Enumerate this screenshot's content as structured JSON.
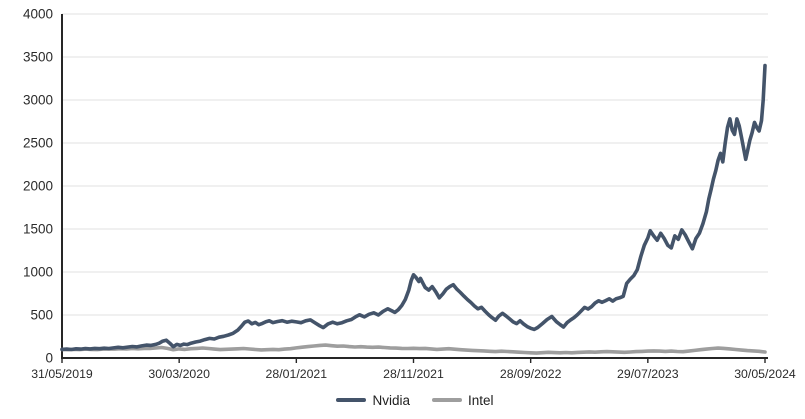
{
  "chart_data": {
    "type": "line",
    "title": "",
    "xlabel": "",
    "ylabel": "",
    "grid": true,
    "legend_position": "bottom",
    "x_axis": {
      "labels": [
        "31/05/2019",
        "30/03/2020",
        "28/01/2021",
        "28/11/2021",
        "28/09/2022",
        "29/07/2023",
        "30/05/2024"
      ],
      "unit": "months-from-start",
      "range": [
        0,
        60
      ]
    },
    "y_axis": {
      "min": 0,
      "max": 4000,
      "step": 500,
      "ticks": [
        "0",
        "500",
        "1000",
        "1500",
        "2000",
        "2500",
        "3000",
        "3500",
        "4000"
      ]
    },
    "series": [
      {
        "name": "Intel",
        "color": "#9E9E9E",
        "points": [
          [
            0,
            100
          ],
          [
            0.5,
            97
          ],
          [
            1,
            101
          ],
          [
            1.5,
            98
          ],
          [
            2,
            103
          ],
          [
            2.5,
            100
          ],
          [
            3,
            98
          ],
          [
            3.5,
            103
          ],
          [
            4,
            106
          ],
          [
            4.5,
            103
          ],
          [
            5,
            108
          ],
          [
            5.5,
            105
          ],
          [
            6,
            110
          ],
          [
            6.5,
            107
          ],
          [
            7,
            112
          ],
          [
            7.5,
            110
          ],
          [
            8,
            116
          ],
          [
            8.5,
            122
          ],
          [
            9,
            112
          ],
          [
            9.5,
            96
          ],
          [
            10,
            106
          ],
          [
            10.5,
            100
          ],
          [
            11,
            108
          ],
          [
            11.5,
            112
          ],
          [
            12,
            116
          ],
          [
            12.5,
            110
          ],
          [
            13,
            104
          ],
          [
            13.5,
            98
          ],
          [
            14,
            101
          ],
          [
            14.5,
            104
          ],
          [
            15,
            107
          ],
          [
            15.5,
            110
          ],
          [
            16,
            105
          ],
          [
            16.5,
            99
          ],
          [
            17,
            94
          ],
          [
            17.5,
            97
          ],
          [
            18,
            100
          ],
          [
            18.5,
            97
          ],
          [
            19,
            103
          ],
          [
            19.5,
            108
          ],
          [
            20,
            118
          ],
          [
            20.5,
            126
          ],
          [
            21,
            133
          ],
          [
            21.5,
            140
          ],
          [
            22,
            146
          ],
          [
            22.5,
            150
          ],
          [
            23,
            143
          ],
          [
            23.5,
            137
          ],
          [
            24,
            140
          ],
          [
            24.5,
            133
          ],
          [
            25,
            128
          ],
          [
            25.5,
            131
          ],
          [
            26,
            127
          ],
          [
            26.5,
            124
          ],
          [
            27,
            127
          ],
          [
            27.5,
            122
          ],
          [
            28,
            118
          ],
          [
            28.5,
            115
          ],
          [
            29,
            112
          ],
          [
            29.5,
            110
          ],
          [
            30,
            113
          ],
          [
            30.5,
            109
          ],
          [
            31,
            112
          ],
          [
            31.5,
            106
          ],
          [
            32,
            100
          ],
          [
            32.5,
            104
          ],
          [
            33,
            108
          ],
          [
            33.5,
            102
          ],
          [
            34,
            97
          ],
          [
            34.5,
            92
          ],
          [
            35,
            88
          ],
          [
            35.5,
            85
          ],
          [
            36,
            82
          ],
          [
            36.5,
            78
          ],
          [
            37,
            75
          ],
          [
            37.5,
            79
          ],
          [
            38,
            76
          ],
          [
            38.5,
            72
          ],
          [
            39,
            68
          ],
          [
            39.5,
            64
          ],
          [
            40,
            60
          ],
          [
            40.5,
            57
          ],
          [
            41,
            62
          ],
          [
            41.5,
            66
          ],
          [
            42,
            63
          ],
          [
            42.5,
            60
          ],
          [
            43,
            64
          ],
          [
            43.5,
            61
          ],
          [
            44,
            65
          ],
          [
            44.5,
            68
          ],
          [
            45,
            71
          ],
          [
            45.5,
            68
          ],
          [
            46,
            72
          ],
          [
            46.5,
            75
          ],
          [
            47,
            72
          ],
          [
            47.5,
            69
          ],
          [
            48,
            66
          ],
          [
            48.5,
            70
          ],
          [
            49,
            74
          ],
          [
            49.5,
            77
          ],
          [
            50,
            80
          ],
          [
            50.5,
            83
          ],
          [
            51,
            80
          ],
          [
            51.5,
            77
          ],
          [
            52,
            80
          ],
          [
            52.5,
            76
          ],
          [
            53,
            73
          ],
          [
            53.5,
            80
          ],
          [
            54,
            88
          ],
          [
            54.5,
            96
          ],
          [
            55,
            104
          ],
          [
            55.5,
            110
          ],
          [
            56,
            115
          ],
          [
            56.5,
            112
          ],
          [
            57,
            106
          ],
          [
            57.5,
            99
          ],
          [
            58,
            92
          ],
          [
            58.5,
            86
          ],
          [
            59,
            82
          ],
          [
            59.5,
            78
          ],
          [
            60,
            70
          ]
        ]
      },
      {
        "name": "Nvidia",
        "color": "#44546A",
        "points": [
          [
            0,
            100
          ],
          [
            0.4,
            104
          ],
          [
            0.8,
            99
          ],
          [
            1.2,
            107
          ],
          [
            1.6,
            103
          ],
          [
            2,
            111
          ],
          [
            2.4,
            106
          ],
          [
            2.8,
            112
          ],
          [
            3.2,
            108
          ],
          [
            3.6,
            114
          ],
          [
            4,
            110
          ],
          [
            4.4,
            118
          ],
          [
            4.8,
            124
          ],
          [
            5.2,
            119
          ],
          [
            5.6,
            127
          ],
          [
            6,
            134
          ],
          [
            6.4,
            129
          ],
          [
            6.8,
            141
          ],
          [
            7.2,
            150
          ],
          [
            7.6,
            146
          ],
          [
            8,
            158
          ],
          [
            8.3,
            172
          ],
          [
            8.6,
            196
          ],
          [
            8.9,
            207
          ],
          [
            9.2,
            172
          ],
          [
            9.5,
            131
          ],
          [
            9.8,
            158
          ],
          [
            10.1,
            147
          ],
          [
            10.4,
            162
          ],
          [
            10.7,
            156
          ],
          [
            11,
            172
          ],
          [
            11.4,
            186
          ],
          [
            11.8,
            196
          ],
          [
            12.2,
            214
          ],
          [
            12.6,
            228
          ],
          [
            13,
            221
          ],
          [
            13.4,
            242
          ],
          [
            13.8,
            252
          ],
          [
            14.2,
            268
          ],
          [
            14.6,
            287
          ],
          [
            15,
            324
          ],
          [
            15.3,
            368
          ],
          [
            15.6,
            416
          ],
          [
            15.9,
            430
          ],
          [
            16.2,
            398
          ],
          [
            16.5,
            414
          ],
          [
            16.8,
            387
          ],
          [
            17.1,
            402
          ],
          [
            17.4,
            422
          ],
          [
            17.7,
            432
          ],
          [
            18,
            412
          ],
          [
            18.4,
            424
          ],
          [
            18.8,
            434
          ],
          [
            19.2,
            416
          ],
          [
            19.6,
            428
          ],
          [
            20,
            420
          ],
          [
            20.4,
            410
          ],
          [
            20.8,
            432
          ],
          [
            21.2,
            443
          ],
          [
            21.6,
            408
          ],
          [
            22,
            374
          ],
          [
            22.3,
            354
          ],
          [
            22.7,
            396
          ],
          [
            23.1,
            416
          ],
          [
            23.5,
            398
          ],
          [
            23.9,
            410
          ],
          [
            24.3,
            432
          ],
          [
            24.7,
            448
          ],
          [
            25.1,
            482
          ],
          [
            25.4,
            502
          ],
          [
            25.8,
            478
          ],
          [
            26.2,
            508
          ],
          [
            26.6,
            526
          ],
          [
            27,
            500
          ],
          [
            27.4,
            542
          ],
          [
            27.8,
            572
          ],
          [
            28.1,
            552
          ],
          [
            28.4,
            530
          ],
          [
            28.7,
            562
          ],
          [
            29,
            610
          ],
          [
            29.3,
            680
          ],
          [
            29.6,
            790
          ],
          [
            29.8,
            900
          ],
          [
            30,
            968
          ],
          [
            30.2,
            940
          ],
          [
            30.45,
            890
          ],
          [
            30.6,
            925
          ],
          [
            30.8,
            870
          ],
          [
            31,
            820
          ],
          [
            31.3,
            790
          ],
          [
            31.6,
            830
          ],
          [
            31.9,
            770
          ],
          [
            32.2,
            700
          ],
          [
            32.5,
            745
          ],
          [
            32.8,
            800
          ],
          [
            33.1,
            830
          ],
          [
            33.4,
            852
          ],
          [
            33.7,
            800
          ],
          [
            34,
            762
          ],
          [
            34.3,
            720
          ],
          [
            34.6,
            680
          ],
          [
            34.9,
            645
          ],
          [
            35.2,
            605
          ],
          [
            35.5,
            572
          ],
          [
            35.8,
            590
          ],
          [
            36.1,
            545
          ],
          [
            36.4,
            505
          ],
          [
            36.7,
            470
          ],
          [
            37,
            440
          ],
          [
            37.3,
            490
          ],
          [
            37.6,
            520
          ],
          [
            37.9,
            488
          ],
          [
            38.2,
            455
          ],
          [
            38.5,
            420
          ],
          [
            38.8,
            400
          ],
          [
            39.1,
            432
          ],
          [
            39.4,
            395
          ],
          [
            39.7,
            365
          ],
          [
            40,
            345
          ],
          [
            40.3,
            332
          ],
          [
            40.6,
            355
          ],
          [
            41,
            400
          ],
          [
            41.4,
            448
          ],
          [
            41.8,
            482
          ],
          [
            42.2,
            422
          ],
          [
            42.5,
            390
          ],
          [
            42.8,
            360
          ],
          [
            43.1,
            410
          ],
          [
            43.4,
            442
          ],
          [
            43.7,
            470
          ],
          [
            44,
            505
          ],
          [
            44.3,
            545
          ],
          [
            44.6,
            588
          ],
          [
            44.9,
            570
          ],
          [
            45.2,
            598
          ],
          [
            45.5,
            640
          ],
          [
            45.8,
            665
          ],
          [
            46.1,
            648
          ],
          [
            46.4,
            668
          ],
          [
            46.7,
            688
          ],
          [
            47,
            662
          ],
          [
            47.3,
            690
          ],
          [
            47.6,
            700
          ],
          [
            47.9,
            718
          ],
          [
            48.2,
            868
          ],
          [
            48.5,
            918
          ],
          [
            48.8,
            958
          ],
          [
            49.1,
            1028
          ],
          [
            49.4,
            1180
          ],
          [
            49.7,
            1310
          ],
          [
            50,
            1395
          ],
          [
            50.2,
            1480
          ],
          [
            50.5,
            1420
          ],
          [
            50.8,
            1370
          ],
          [
            51.1,
            1450
          ],
          [
            51.4,
            1390
          ],
          [
            51.7,
            1310
          ],
          [
            52,
            1280
          ],
          [
            52.3,
            1420
          ],
          [
            52.6,
            1380
          ],
          [
            52.9,
            1490
          ],
          [
            53.2,
            1430
          ],
          [
            53.5,
            1350
          ],
          [
            53.8,
            1270
          ],
          [
            54.1,
            1390
          ],
          [
            54.4,
            1450
          ],
          [
            54.7,
            1560
          ],
          [
            55,
            1700
          ],
          [
            55.2,
            1850
          ],
          [
            55.4,
            1960
          ],
          [
            55.6,
            2080
          ],
          [
            55.8,
            2180
          ],
          [
            56,
            2300
          ],
          [
            56.2,
            2380
          ],
          [
            56.4,
            2280
          ],
          [
            56.6,
            2500
          ],
          [
            56.8,
            2680
          ],
          [
            57,
            2780
          ],
          [
            57.2,
            2650
          ],
          [
            57.4,
            2600
          ],
          [
            57.6,
            2780
          ],
          [
            57.8,
            2700
          ],
          [
            58,
            2560
          ],
          [
            58.2,
            2420
          ],
          [
            58.35,
            2310
          ],
          [
            58.5,
            2400
          ],
          [
            58.7,
            2530
          ],
          [
            58.9,
            2620
          ],
          [
            59.1,
            2740
          ],
          [
            59.3,
            2680
          ],
          [
            59.5,
            2640
          ],
          [
            59.7,
            2760
          ],
          [
            59.85,
            3000
          ],
          [
            60,
            3400
          ]
        ]
      }
    ]
  },
  "legend": {
    "items": [
      {
        "label": "Nvidia",
        "color": "#44546A"
      },
      {
        "label": "Intel",
        "color": "#9E9E9E"
      }
    ]
  },
  "style": {
    "background": "#ffffff",
    "gridline_color": "#e2e2e2",
    "axis_color": "#262626",
    "label_color": "#2b2b2b",
    "line_width": 3.6
  }
}
